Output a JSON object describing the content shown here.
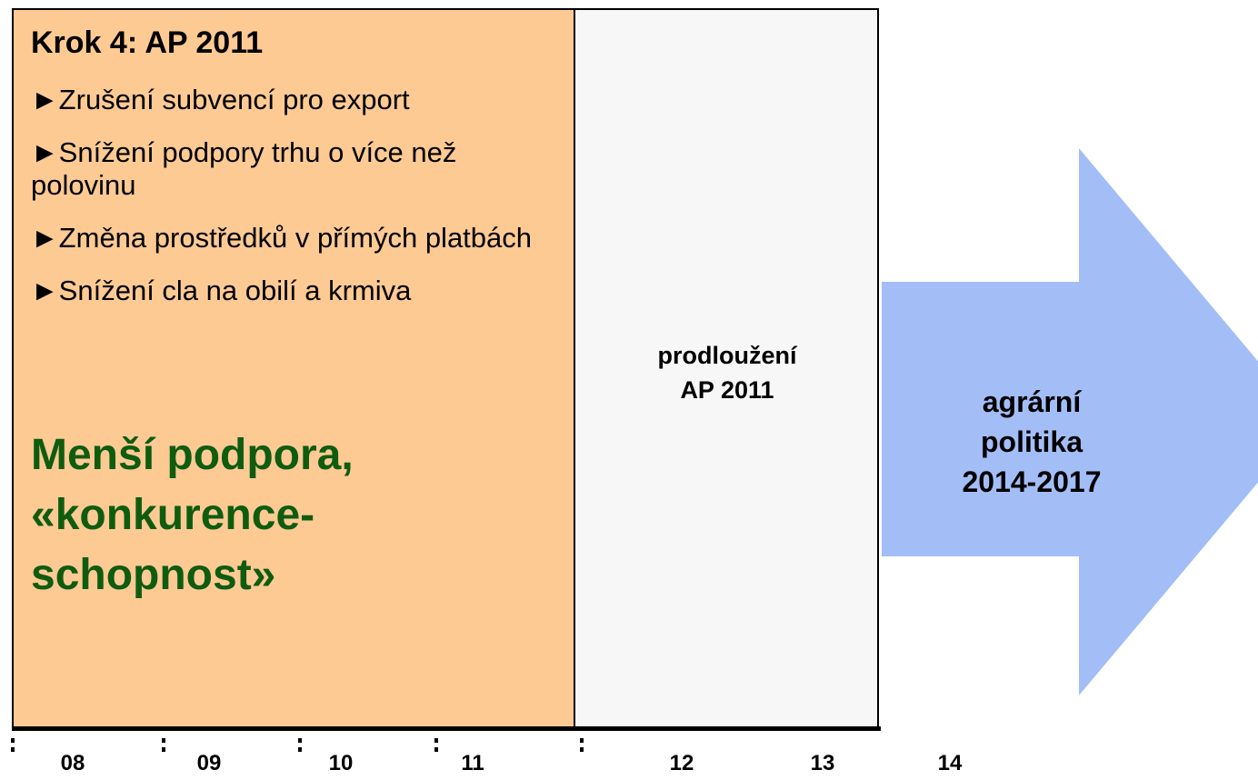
{
  "step": {
    "title": "Krok 4: AP 2011",
    "bullets": [
      "►Zrušení subvencí pro export",
      "►Snížení podpory trhu o více než polovinu",
      "►Změna prostředků v přímých platbách",
      "►Snížení cla na obilí a krmiva"
    ],
    "slogan": [
      "Menší podpora,",
      "«konkurence-",
      "schopnost»"
    ]
  },
  "extension": {
    "lines": [
      "prodloužení",
      "AP 2011"
    ]
  },
  "arrow": {
    "lines": [
      "agrární",
      "politika",
      "2014-2017"
    ]
  },
  "years": [
    "08",
    "09",
    "10",
    "11",
    "12",
    "13",
    "14"
  ]
}
